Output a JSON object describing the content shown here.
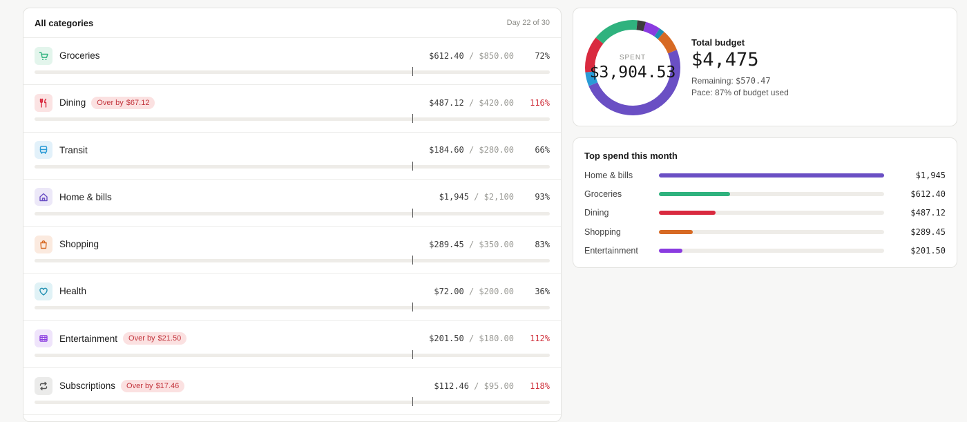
{
  "categories_panel": {
    "title": "All categories",
    "day_label": "Day 22 of 30",
    "pace_fraction": 0.733,
    "over_prefix": "Over by",
    "sep": "/",
    "rows": [
      {
        "name": "Groceries",
        "spent": "$612.40",
        "budget": "$850.00",
        "pct": "72%",
        "fill": 0.72,
        "over": false,
        "over_amount": "",
        "color": "#2fb27e",
        "bg": "#e3f5ec",
        "icon": "cart-icon"
      },
      {
        "name": "Dining",
        "spent": "$487.12",
        "budget": "$420.00",
        "pct": "116%",
        "fill": 1.0,
        "over": true,
        "over_amount": "$67.12",
        "color": "#d92a3f",
        "bg": "#fbe3e3",
        "icon": "fork-knife-icon"
      },
      {
        "name": "Transit",
        "spent": "$184.60",
        "budget": "$280.00",
        "pct": "66%",
        "fill": 0.66,
        "over": false,
        "over_amount": "",
        "color": "#2a9bd6",
        "bg": "#e2f1fa",
        "icon": "bus-icon"
      },
      {
        "name": "Home & bills",
        "spent": "$1,945",
        "budget": "$2,100",
        "pct": "93%",
        "fill": 0.93,
        "over": false,
        "over_amount": "",
        "color": "#6a4fc4",
        "bg": "#ece8f8",
        "icon": "home-icon"
      },
      {
        "name": "Shopping",
        "spent": "$289.45",
        "budget": "$350.00",
        "pct": "83%",
        "fill": 0.83,
        "over": false,
        "over_amount": "",
        "color": "#d76a24",
        "bg": "#fbeadf",
        "icon": "bag-icon"
      },
      {
        "name": "Health",
        "spent": "$72.00",
        "budget": "$200.00",
        "pct": "36%",
        "fill": 0.36,
        "over": false,
        "over_amount": "",
        "color": "#1e8fb0",
        "bg": "#e0f2f6",
        "icon": "heart-icon"
      },
      {
        "name": "Entertainment",
        "spent": "$201.50",
        "budget": "$180.00",
        "pct": "112%",
        "fill": 1.0,
        "over": true,
        "over_amount": "$21.50",
        "color": "#8a3be0",
        "bg": "#efe4fb",
        "icon": "film-icon"
      },
      {
        "name": "Subscriptions",
        "spent": "$112.46",
        "budget": "$95.00",
        "pct": "118%",
        "fill": 1.0,
        "over": true,
        "over_amount": "$17.46",
        "color": "#555555",
        "bg": "#ebebea",
        "icon": "repeat-icon"
      }
    ]
  },
  "budget_summary": {
    "spent_label": "SPENT",
    "spent_value": "$3,904.53",
    "title": "Total budget",
    "total": "$4,475",
    "remaining_label": "Remaining:",
    "remaining_value": "$570.47",
    "pace_label": "Pace:",
    "pace_value": "87% of budget used",
    "donut_segments": [
      {
        "category": "Home & bills",
        "value": 1945,
        "color": "#6a4fc4"
      },
      {
        "category": "Transit",
        "value": 184.6,
        "color": "#2a9bd6"
      },
      {
        "category": "Dining",
        "value": 487.12,
        "color": "#d92a3f"
      },
      {
        "category": "Groceries",
        "value": 612.4,
        "color": "#2fb27e"
      },
      {
        "category": "Subscriptions",
        "value": 112.46,
        "color": "#3c3c3c"
      },
      {
        "category": "Entertainment",
        "value": 201.5,
        "color": "#8a3be0"
      },
      {
        "category": "Health",
        "value": 72.0,
        "color": "#1e8fb0"
      },
      {
        "category": "Shopping",
        "value": 289.45,
        "color": "#d76a24"
      }
    ]
  },
  "top_spend": {
    "title": "Top spend this month",
    "max_value": 1945,
    "rows": [
      {
        "name": "Home & bills",
        "value": "$1,945",
        "amount": 1945,
        "color": "#6a4fc4"
      },
      {
        "name": "Groceries",
        "value": "$612.40",
        "amount": 612.4,
        "color": "#2fb27e"
      },
      {
        "name": "Dining",
        "value": "$487.12",
        "amount": 487.12,
        "color": "#d92a3f"
      },
      {
        "name": "Shopping",
        "value": "$289.45",
        "amount": 289.45,
        "color": "#d76a24"
      },
      {
        "name": "Entertainment",
        "value": "$201.50",
        "amount": 201.5,
        "color": "#8a3be0"
      }
    ]
  }
}
